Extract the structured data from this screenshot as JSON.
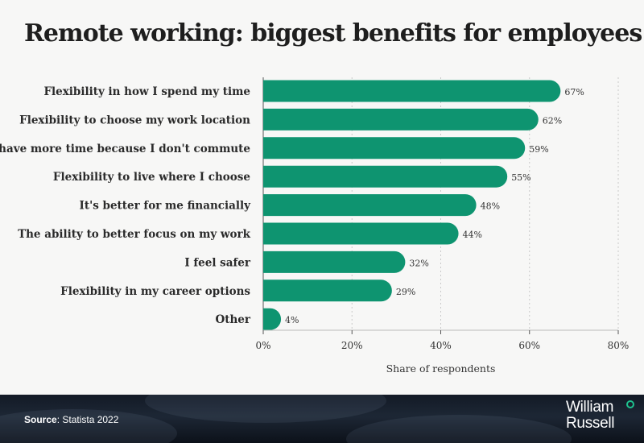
{
  "title": "Remote working: biggest benefits for employees",
  "chart_data": {
    "type": "bar",
    "orientation": "horizontal",
    "categories": [
      "Flexibility in how I spend my time",
      "Flexibility to choose my work location",
      "I have more time because I don't commute",
      "Flexibility to live where I choose",
      "It's better for me financially",
      "The ability to better focus on my work",
      "I feel safer",
      "Flexibility in my career options",
      "Other"
    ],
    "values": [
      67,
      62,
      59,
      55,
      48,
      44,
      32,
      29,
      4
    ],
    "value_labels": [
      "67%",
      "62%",
      "59%",
      "55%",
      "48%",
      "44%",
      "32%",
      "29%",
      "4%"
    ],
    "xlim": [
      0,
      80
    ],
    "xticks": [
      0,
      20,
      40,
      60,
      80
    ],
    "xtick_labels": [
      "0%",
      "20%",
      "40%",
      "60%",
      "80%"
    ],
    "xlabel": "Share of respondents",
    "ylabel": "",
    "grid": "dashed vertical",
    "bar_color": "#0e9470"
  },
  "footer": {
    "source_label": "Source",
    "source_text": ": Statista 2022"
  },
  "logo": {
    "line1": "William",
    "line2": "Russell",
    "accent_color": "#1ec28e"
  }
}
